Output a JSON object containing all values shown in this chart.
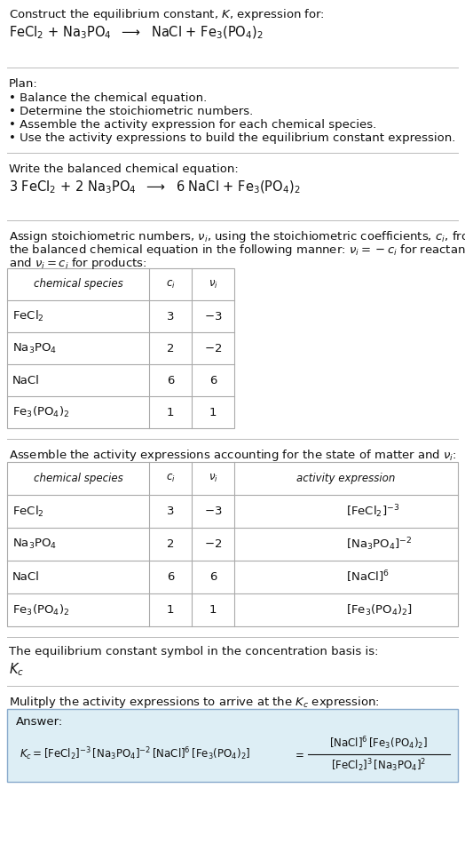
{
  "bg_color": "#ffffff",
  "text_color": "#111111",
  "sep_color": "#bbbbbb",
  "table_border": "#aaaaaa",
  "answer_bg": "#ddeef5",
  "answer_border": "#88aacc",
  "fs": 9.5,
  "fs_small": 8.5,
  "fs_reaction": 10.5,
  "s1_title": "Construct the equilibrium constant, $K$, expression for:",
  "s1_reaction": "FeCl$_2$ + Na$_3$PO$_4$  $\\longrightarrow$  NaCl + Fe$_3$(PO$_4$)$_2$",
  "s2_plan_header": "Plan:",
  "s2_plan_items": [
    "• Balance the chemical equation.",
    "• Determine the stoichiometric numbers.",
    "• Assemble the activity expression for each chemical species.",
    "• Use the activity expressions to build the equilibrium constant expression."
  ],
  "s3_header": "Write the balanced chemical equation:",
  "s3_reaction": "3 FeCl$_2$ + 2 Na$_3$PO$_4$  $\\longrightarrow$  6 NaCl + Fe$_3$(PO$_4$)$_2$",
  "s4_header_line1": "Assign stoichiometric numbers, $\\nu_i$, using the stoichiometric coefficients, $c_i$, from",
  "s4_header_line2": "the balanced chemical equation in the following manner: $\\nu_i = -c_i$ for reactants",
  "s4_header_line3": "and $\\nu_i = c_i$ for products:",
  "table1_col_headers": [
    "chemical species",
    "$c_i$",
    "$\\nu_i$"
  ],
  "table1_rows": [
    [
      "FeCl$_2$",
      "3",
      "$-3$"
    ],
    [
      "Na$_3$PO$_4$",
      "2",
      "$-2$"
    ],
    [
      "NaCl",
      "6",
      "6"
    ],
    [
      "Fe$_3$(PO$_4$)$_2$",
      "1",
      "1"
    ]
  ],
  "s5_header": "Assemble the activity expressions accounting for the state of matter and $\\nu_i$:",
  "table2_col_headers": [
    "chemical species",
    "$c_i$",
    "$\\nu_i$",
    "activity expression"
  ],
  "table2_rows": [
    [
      "FeCl$_2$",
      "3",
      "$-3$",
      "$[\\mathrm{FeCl}_2]^{-3}$"
    ],
    [
      "Na$_3$PO$_4$",
      "2",
      "$-2$",
      "$[\\mathrm{Na}_3\\mathrm{PO}_4]^{-2}$"
    ],
    [
      "NaCl",
      "6",
      "6",
      "$[\\mathrm{NaCl}]^6$"
    ],
    [
      "Fe$_3$(PO$_4$)$_2$",
      "1",
      "1",
      "$[\\mathrm{Fe}_3(\\mathrm{PO}_4)_2]$"
    ]
  ],
  "s6_line1": "The equilibrium constant symbol in the concentration basis is:",
  "s6_symbol": "$K_c$",
  "s7_header": "Mulitply the activity expressions to arrive at the $K_c$ expression:",
  "s7_answer_label": "Answer:",
  "s7_expr_left": "$K_c = [\\mathrm{FeCl}_2]^{-3}\\,[\\mathrm{Na}_3\\mathrm{PO}_4]^{-2}\\,[\\mathrm{NaCl}]^6\\,[\\mathrm{Fe}_3(\\mathrm{PO}_4)_2]$",
  "s7_equals": "$=$",
  "s7_numerator": "$[\\mathrm{NaCl}]^6\\,[\\mathrm{Fe}_3(\\mathrm{PO}_4)_2]$",
  "s7_denominator": "$[\\mathrm{FeCl}_2]^3\\,[\\mathrm{Na}_3\\mathrm{PO}_4]^2$"
}
